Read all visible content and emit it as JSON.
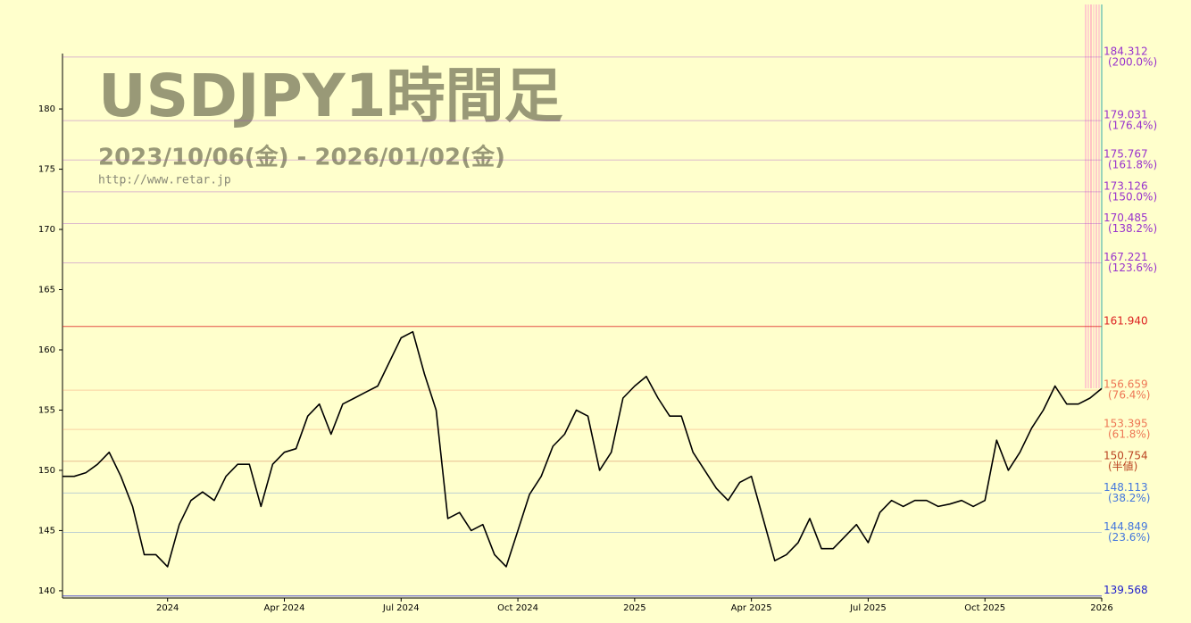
{
  "chart_data": {
    "type": "line",
    "title": "USDJPY1時間足",
    "subtitle": "2023/10/06(金) - 2026/01/02(金)",
    "url": "http://www.retar.jp",
    "color": "#000000",
    "ylim": [
      139.4,
      184.6
    ],
    "yticks": [
      140,
      145,
      150,
      155,
      160,
      165,
      170,
      175,
      180
    ],
    "categories": [
      null,
      null,
      null,
      null,
      null,
      null,
      null,
      null,
      null,
      "2024",
      null,
      null,
      null,
      null,
      null,
      null,
      null,
      null,
      null,
      "Apr 2024",
      null,
      null,
      null,
      null,
      null,
      null,
      null,
      null,
      null,
      "Jul 2024",
      null,
      null,
      null,
      null,
      null,
      null,
      null,
      null,
      null,
      "Oct 2024",
      null,
      null,
      null,
      null,
      null,
      null,
      null,
      null,
      null,
      "2025",
      null,
      null,
      null,
      null,
      null,
      null,
      null,
      null,
      null,
      "Apr 2025",
      null,
      null,
      null,
      null,
      null,
      null,
      null,
      null,
      null,
      "Jul 2025",
      null,
      null,
      null,
      null,
      null,
      null,
      null,
      null,
      null,
      "Oct 2025",
      null,
      null,
      null,
      null,
      null,
      null,
      null,
      null,
      null,
      "2026"
    ],
    "values": [
      149.5,
      149.5,
      149.8,
      150.5,
      151.5,
      149.5,
      147,
      143,
      143,
      142,
      145.5,
      147.5,
      148.2,
      147.5,
      149.5,
      150.5,
      150.5,
      147,
      150.5,
      151.5,
      151.8,
      154.5,
      155.5,
      153,
      155.5,
      156,
      156.5,
      157,
      159,
      161,
      161.5,
      158,
      155,
      146,
      146.5,
      145,
      145.5,
      143,
      142,
      145,
      148,
      149.5,
      152,
      153,
      155,
      154.5,
      150,
      151.5,
      156,
      157,
      157.8,
      156,
      154.5,
      154.5,
      151.5,
      150,
      148.5,
      147.5,
      149,
      149.5,
      146,
      142.5,
      143,
      144,
      146,
      143.5,
      143.5,
      144.5,
      145.5,
      144,
      146.5,
      147.5,
      147,
      147.5,
      147.5,
      147,
      147.2,
      147.5,
      147,
      147.5,
      152.5,
      150,
      151.5,
      153.5,
      155,
      157,
      155.5,
      155.5,
      156,
      156.8
    ],
    "levels": [
      {
        "value": 184.312,
        "note": "(200.0%)",
        "color": "#9933cc"
      },
      {
        "value": 179.031,
        "note": "(176.4%)",
        "color": "#9933cc"
      },
      {
        "value": 175.767,
        "note": "(161.8%)",
        "color": "#9933cc"
      },
      {
        "value": 173.126,
        "note": "(150.0%)",
        "color": "#9933cc"
      },
      {
        "value": 170.485,
        "note": "(138.2%)",
        "color": "#9933cc"
      },
      {
        "value": 167.221,
        "note": "(123.6%)",
        "color": "#9933cc"
      },
      {
        "value": 161.94,
        "label": "161.940",
        "color": "#dd2222"
      },
      {
        "value": 156.659,
        "note": "(76.4%)",
        "color": "#ee7755"
      },
      {
        "value": 153.395,
        "note": "(61.8%)",
        "color": "#ee7755"
      },
      {
        "value": 150.754,
        "note": "(半値)",
        "color": "#bb4422"
      },
      {
        "value": 148.113,
        "note": "(38.2%)",
        "color": "#4477dd"
      },
      {
        "value": 144.849,
        "note": "(23.6%)",
        "color": "#4477dd"
      },
      {
        "value": 139.568,
        "color": "#2222cc"
      }
    ]
  }
}
